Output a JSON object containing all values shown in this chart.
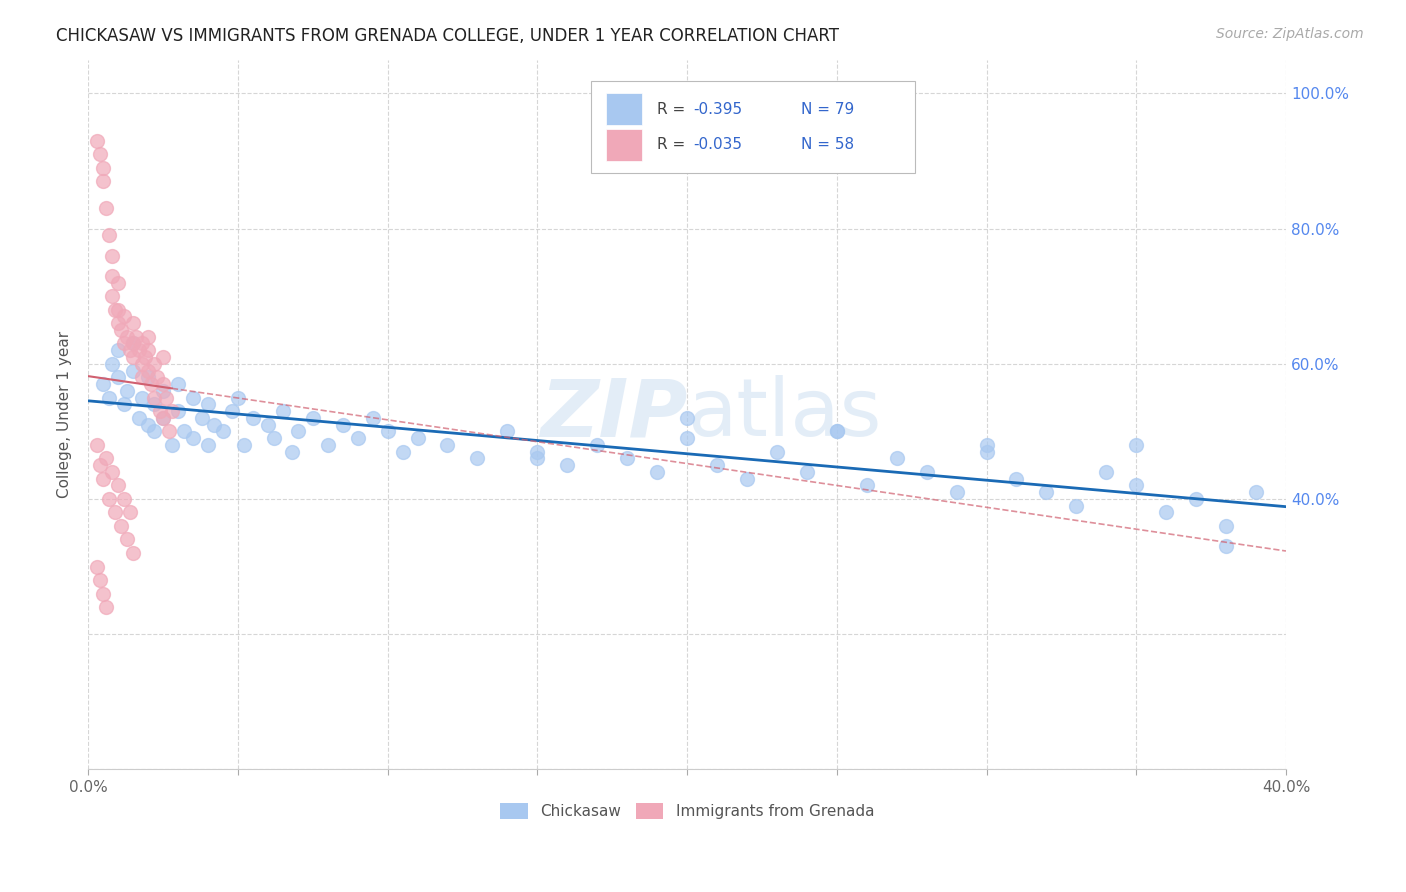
{
  "title": "CHICKASAW VS IMMIGRANTS FROM GRENADA COLLEGE, UNDER 1 YEAR CORRELATION CHART",
  "source": "Source: ZipAtlas.com",
  "ylabel": "College, Under 1 year",
  "xlim": [
    0.0,
    0.4
  ],
  "ylim": [
    0.0,
    1.05
  ],
  "legend_r1": "-0.395",
  "legend_n1": "79",
  "legend_r2": "-0.035",
  "legend_n2": "58",
  "color_blue": "#a8c8f0",
  "color_pink": "#f0a8b8",
  "color_blue_line": "#1a6ab5",
  "color_pink_line": "#d06070",
  "color_legend_text_r": "#3366cc",
  "color_legend_text_n": "#3366cc",
  "watermark": "ZIPatlas",
  "background_color": "#ffffff",
  "grid_color": "#cccccc",
  "chickasaw_x": [
    0.005,
    0.007,
    0.008,
    0.01,
    0.01,
    0.012,
    0.013,
    0.015,
    0.015,
    0.017,
    0.018,
    0.02,
    0.02,
    0.022,
    0.022,
    0.025,
    0.025,
    0.028,
    0.03,
    0.03,
    0.032,
    0.035,
    0.035,
    0.038,
    0.04,
    0.04,
    0.042,
    0.045,
    0.048,
    0.05,
    0.052,
    0.055,
    0.06,
    0.062,
    0.065,
    0.068,
    0.07,
    0.075,
    0.08,
    0.085,
    0.09,
    0.095,
    0.1,
    0.105,
    0.11,
    0.12,
    0.13,
    0.14,
    0.15,
    0.16,
    0.17,
    0.18,
    0.19,
    0.2,
    0.21,
    0.22,
    0.23,
    0.24,
    0.25,
    0.26,
    0.27,
    0.28,
    0.29,
    0.3,
    0.31,
    0.32,
    0.33,
    0.34,
    0.35,
    0.36,
    0.37,
    0.38,
    0.39,
    0.15,
    0.2,
    0.25,
    0.3,
    0.35,
    0.38
  ],
  "chickasaw_y": [
    0.57,
    0.55,
    0.6,
    0.58,
    0.62,
    0.54,
    0.56,
    0.59,
    0.63,
    0.52,
    0.55,
    0.51,
    0.58,
    0.54,
    0.5,
    0.56,
    0.52,
    0.48,
    0.57,
    0.53,
    0.5,
    0.55,
    0.49,
    0.52,
    0.54,
    0.48,
    0.51,
    0.5,
    0.53,
    0.55,
    0.48,
    0.52,
    0.51,
    0.49,
    0.53,
    0.47,
    0.5,
    0.52,
    0.48,
    0.51,
    0.49,
    0.52,
    0.5,
    0.47,
    0.49,
    0.48,
    0.46,
    0.5,
    0.47,
    0.45,
    0.48,
    0.46,
    0.44,
    0.49,
    0.45,
    0.43,
    0.47,
    0.44,
    0.5,
    0.42,
    0.46,
    0.44,
    0.41,
    0.48,
    0.43,
    0.41,
    0.39,
    0.44,
    0.42,
    0.38,
    0.4,
    0.36,
    0.41,
    0.46,
    0.52,
    0.5,
    0.47,
    0.48,
    0.33
  ],
  "grenada_x": [
    0.003,
    0.004,
    0.005,
    0.005,
    0.006,
    0.007,
    0.008,
    0.008,
    0.008,
    0.009,
    0.01,
    0.01,
    0.01,
    0.011,
    0.012,
    0.012,
    0.013,
    0.014,
    0.015,
    0.015,
    0.015,
    0.016,
    0.017,
    0.018,
    0.018,
    0.018,
    0.019,
    0.02,
    0.02,
    0.02,
    0.021,
    0.022,
    0.022,
    0.023,
    0.024,
    0.025,
    0.025,
    0.025,
    0.026,
    0.027,
    0.028,
    0.003,
    0.004,
    0.005,
    0.006,
    0.007,
    0.008,
    0.009,
    0.01,
    0.011,
    0.012,
    0.013,
    0.014,
    0.015,
    0.003,
    0.004,
    0.005,
    0.006
  ],
  "grenada_y": [
    0.93,
    0.91,
    0.89,
    0.87,
    0.83,
    0.79,
    0.76,
    0.73,
    0.7,
    0.68,
    0.66,
    0.68,
    0.72,
    0.65,
    0.63,
    0.67,
    0.64,
    0.62,
    0.63,
    0.66,
    0.61,
    0.64,
    0.62,
    0.6,
    0.63,
    0.58,
    0.61,
    0.59,
    0.62,
    0.64,
    0.57,
    0.6,
    0.55,
    0.58,
    0.53,
    0.57,
    0.61,
    0.52,
    0.55,
    0.5,
    0.53,
    0.48,
    0.45,
    0.43,
    0.46,
    0.4,
    0.44,
    0.38,
    0.42,
    0.36,
    0.4,
    0.34,
    0.38,
    0.32,
    0.3,
    0.28,
    0.26,
    0.24
  ]
}
